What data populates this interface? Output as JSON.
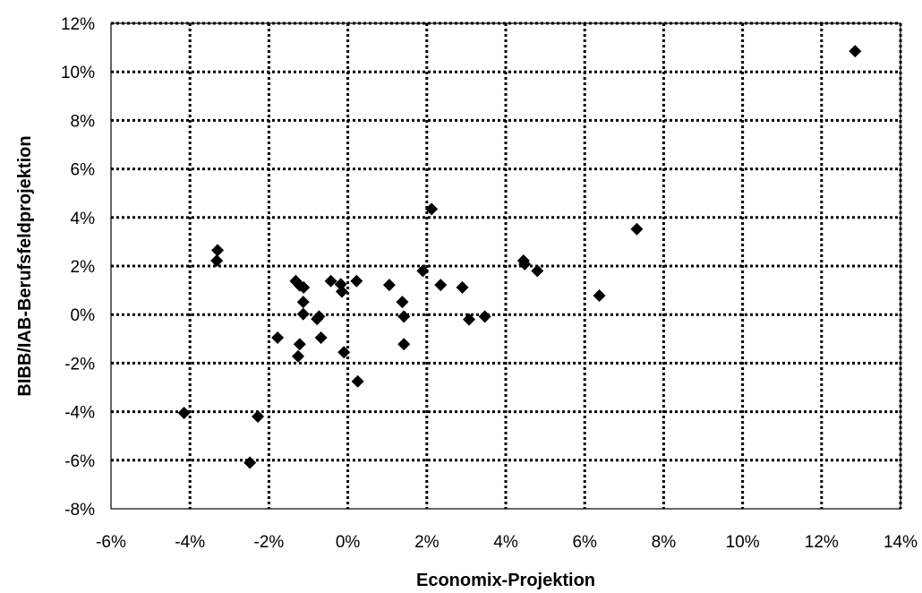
{
  "chart_data": {
    "type": "scatter",
    "title": "",
    "xlabel": "Economix-Projektion",
    "ylabel": "BIBB/IAB-Berufsfeldprojektion",
    "xlim": [
      -0.06,
      0.14
    ],
    "ylim": [
      -0.08,
      0.12
    ],
    "x_ticks": [
      -0.06,
      -0.04,
      -0.02,
      0.0,
      0.02,
      0.04,
      0.06,
      0.08,
      0.1,
      0.12,
      0.14
    ],
    "y_ticks": [
      -0.08,
      -0.06,
      -0.04,
      -0.02,
      0.0,
      0.02,
      0.04,
      0.06,
      0.08,
      0.1,
      0.12
    ],
    "x_tick_labels": [
      "-6%",
      "-4%",
      "-2%",
      "0%",
      "2%",
      "4%",
      "6%",
      "8%",
      "10%",
      "12%",
      "14%"
    ],
    "y_tick_labels": [
      "-8%",
      "-6%",
      "-4%",
      "-2%",
      "0%",
      "2%",
      "4%",
      "6%",
      "8%",
      "10%",
      "12%"
    ],
    "grid": true,
    "legend": "none",
    "marker": "diamond",
    "marker_color": "#000000",
    "points": [
      {
        "x": -0.0415,
        "y": -0.0405
      },
      {
        "x": -0.033,
        "y": 0.0265
      },
      {
        "x": -0.0332,
        "y": 0.0222
      },
      {
        "x": -0.0248,
        "y": -0.061
      },
      {
        "x": -0.0228,
        "y": -0.042
      },
      {
        "x": -0.0178,
        "y": -0.0095
      },
      {
        "x": -0.0132,
        "y": 0.0138
      },
      {
        "x": -0.0122,
        "y": 0.012
      },
      {
        "x": -0.0112,
        "y": 0.0112
      },
      {
        "x": -0.0113,
        "y": 0.0052
      },
      {
        "x": -0.0113,
        "y": 0.0002
      },
      {
        "x": -0.0122,
        "y": -0.0122
      },
      {
        "x": -0.0126,
        "y": -0.0172
      },
      {
        "x": -0.0078,
        "y": -0.0018
      },
      {
        "x": -0.0073,
        "y": -0.0008
      },
      {
        "x": -0.0068,
        "y": -0.0095
      },
      {
        "x": -0.0043,
        "y": 0.0138
      },
      {
        "x": -0.0018,
        "y": 0.0125
      },
      {
        "x": -0.0015,
        "y": 0.0095
      },
      {
        "x": -0.001,
        "y": -0.0155
      },
      {
        "x": 0.0022,
        "y": 0.0138
      },
      {
        "x": 0.0025,
        "y": -0.0275
      },
      {
        "x": 0.0105,
        "y": 0.0122
      },
      {
        "x": 0.0138,
        "y": 0.0052
      },
      {
        "x": 0.0142,
        "y": -0.0008
      },
      {
        "x": 0.0142,
        "y": -0.0122
      },
      {
        "x": 0.019,
        "y": 0.018
      },
      {
        "x": 0.0212,
        "y": 0.0435
      },
      {
        "x": 0.0235,
        "y": 0.0122
      },
      {
        "x": 0.029,
        "y": 0.0112
      },
      {
        "x": 0.0307,
        "y": -0.002
      },
      {
        "x": 0.0347,
        "y": -0.0008
      },
      {
        "x": 0.0445,
        "y": 0.0222
      },
      {
        "x": 0.0448,
        "y": 0.0208
      },
      {
        "x": 0.048,
        "y": 0.018
      },
      {
        "x": 0.0637,
        "y": 0.0078
      },
      {
        "x": 0.0732,
        "y": 0.0352
      },
      {
        "x": 0.1285,
        "y": 0.1085
      }
    ]
  }
}
